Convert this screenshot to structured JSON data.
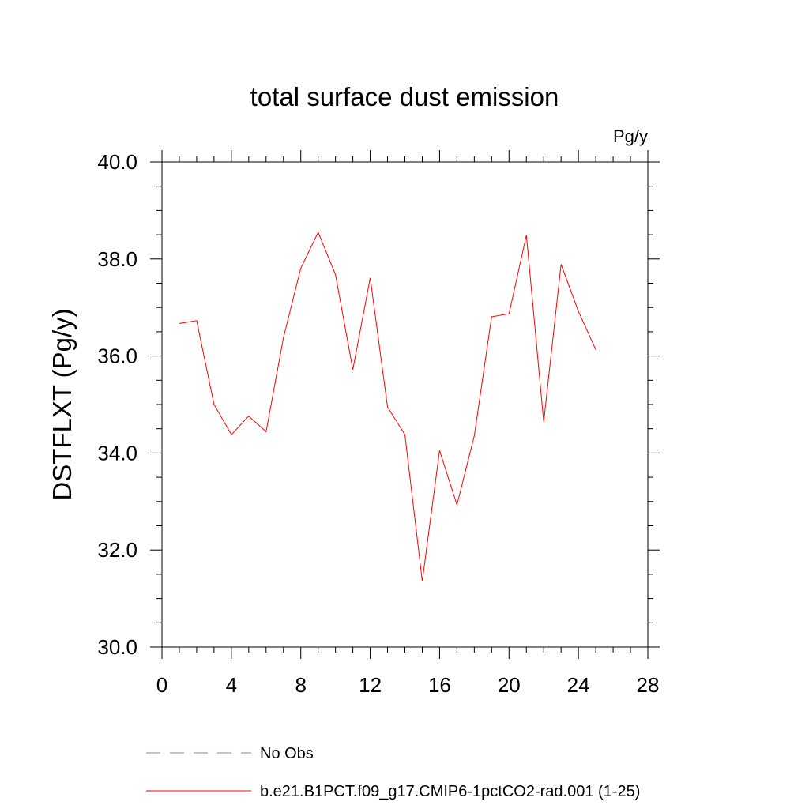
{
  "chart_data": {
    "type": "line",
    "title": "total surface dust emission",
    "units": "Pg/y",
    "ylabel": "DSTFLXT  (Pg/y)",
    "xlabel": "",
    "xlim": [
      0,
      28
    ],
    "ylim": [
      30.0,
      40.0
    ],
    "x_ticks": [
      0,
      4,
      8,
      12,
      16,
      20,
      24,
      28
    ],
    "y_ticks": [
      "30.0",
      "32.0",
      "34.0",
      "36.0",
      "38.0",
      "40.0"
    ],
    "grid": false,
    "legend_position": "bottom",
    "series": [
      {
        "name": "No Obs",
        "color": "#8080c0",
        "dash": true,
        "x": [],
        "y": []
      },
      {
        "name": "b.e21.B1PCT.f09_g17.CMIP6-1pctCO2-rad.001 (1-25)",
        "color": "#ff0000",
        "dash": false,
        "x": [
          1,
          2,
          3,
          4,
          5,
          6,
          7,
          8,
          9,
          10,
          11,
          12,
          13,
          14,
          15,
          16,
          17,
          18,
          19,
          20,
          21,
          22,
          23,
          24,
          25
        ],
        "y": [
          36.67,
          36.73,
          35.0,
          34.38,
          34.76,
          34.44,
          36.38,
          37.81,
          38.55,
          37.68,
          35.72,
          37.61,
          34.95,
          34.38,
          31.36,
          34.05,
          32.93,
          34.36,
          36.81,
          36.87,
          38.49,
          34.64,
          37.89,
          36.92,
          36.13
        ]
      }
    ]
  }
}
